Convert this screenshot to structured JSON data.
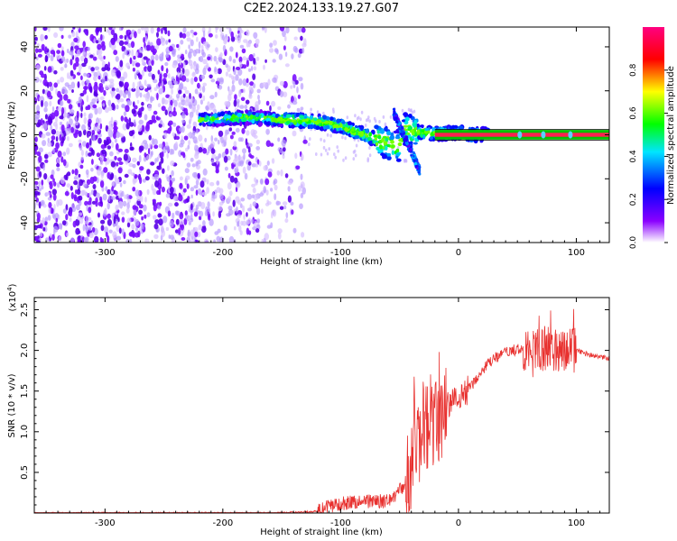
{
  "figure": {
    "title": "C2E2.2024.133.19.27.G07"
  },
  "colorbar": {
    "label": "Normalized spectral amplitude",
    "ticks": [
      "0.0",
      "0.2",
      "0.4",
      "0.6",
      "0.8"
    ],
    "range": [
      0,
      1
    ],
    "colors": [
      "#ffffff",
      "#8a00ff",
      "#0000ff",
      "#00e5ff",
      "#00ff00",
      "#ffff00",
      "#ff0000",
      "#ff0080"
    ]
  },
  "chart_data": [
    {
      "type": "heatmap",
      "xlabel": "Height of straight line (km)",
      "ylabel": "Frequency (Hz)",
      "xlim": [
        -360,
        128
      ],
      "ylim": [
        -49,
        49
      ],
      "x_ticks": [
        "-300",
        "-200",
        "-100",
        "0",
        "100"
      ],
      "y_ticks": [
        "-40",
        "-20",
        "0",
        "20",
        "40"
      ],
      "ridge": {
        "x": [
          -215,
          -180,
          -150,
          -120,
          -100,
          -90,
          -75,
          -60,
          -55,
          -50,
          -45,
          -40,
          -30,
          -20,
          -10,
          0,
          10,
          40,
          60,
          80,
          100,
          128
        ],
        "y": [
          7,
          8,
          7,
          6,
          4,
          2,
          -1,
          -4,
          -6,
          -5,
          3,
          2,
          1,
          0.5,
          0.5,
          1,
          0,
          0,
          0,
          0,
          0,
          0
        ]
      }
    },
    {
      "type": "line",
      "xlabel": "Height of straight line (km)",
      "ylabel": "SNR (10 * v/v)",
      "y_scale_label": "(x10",
      "y_scale_exp": "4",
      "y_scale_close": ")",
      "xlim": [
        -360,
        128
      ],
      "ylim": [
        0,
        2.65
      ],
      "x_ticks": [
        "-300",
        "-200",
        "-100",
        "0",
        "100"
      ],
      "y_ticks": [
        "0.5",
        "1.0",
        "1.5",
        "2.0",
        "2.5"
      ],
      "series_color": "#e8312f",
      "trend": {
        "x": [
          -360,
          -250,
          -150,
          -120,
          -110,
          -100,
          -80,
          -60,
          -45,
          -38,
          -32,
          -25,
          -20,
          -15,
          -10,
          -5,
          0,
          10,
          20,
          30,
          45,
          60,
          80,
          100,
          115,
          128
        ],
        "y": [
          0.0,
          0.0,
          0.0,
          0.02,
          0.08,
          0.12,
          0.15,
          0.14,
          0.35,
          0.65,
          0.95,
          1.1,
          1.05,
          1.2,
          1.3,
          1.38,
          1.4,
          1.55,
          1.75,
          1.9,
          2.0,
          2.02,
          2.03,
          2.0,
          1.93,
          1.9
        ]
      }
    }
  ]
}
